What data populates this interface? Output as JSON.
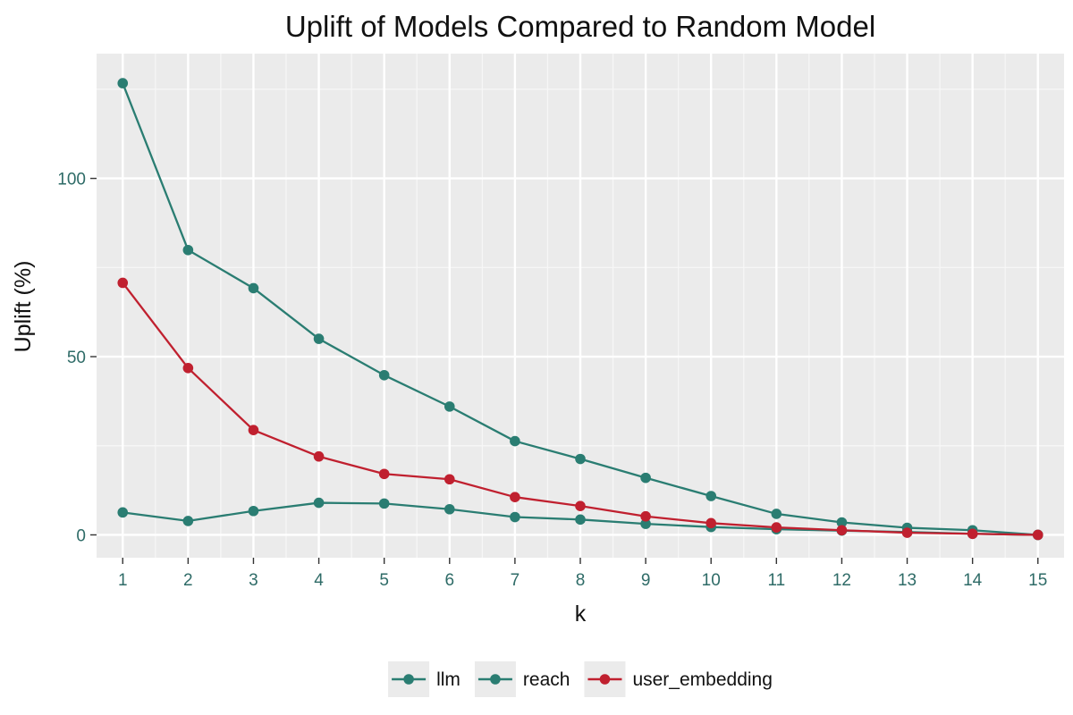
{
  "chart_data": {
    "type": "line",
    "title": "Uplift of Models Compared to Random Model",
    "xlabel": "k",
    "ylabel": "Uplift (%)",
    "x": [
      1,
      2,
      3,
      4,
      5,
      6,
      7,
      8,
      9,
      10,
      11,
      12,
      13,
      14,
      15
    ],
    "xlim": [
      0.6,
      15.4
    ],
    "ylim": [
      -6.4,
      135
    ],
    "y_ticks": [
      0,
      50,
      100
    ],
    "grid": true,
    "legend_position": "bottom",
    "series": [
      {
        "name": "llm",
        "color": "#2a7d72",
        "values": [
          126.7,
          79.9,
          69.2,
          55.0,
          44.8,
          36.0,
          26.3,
          21.3,
          16.0,
          10.9,
          5.9,
          3.5,
          2.0,
          1.3,
          0.0
        ]
      },
      {
        "name": "reach",
        "color": "#2a7d72",
        "values": [
          6.3,
          3.9,
          6.7,
          9.0,
          8.8,
          7.2,
          5.0,
          4.3,
          3.1,
          2.2,
          1.6,
          1.2,
          0.8,
          0.3,
          0.0
        ]
      },
      {
        "name": "user_embedding",
        "color": "#c0202f",
        "values": [
          70.7,
          46.8,
          29.4,
          22.0,
          17.1,
          15.6,
          10.6,
          8.1,
          5.2,
          3.3,
          2.1,
          1.3,
          0.6,
          0.3,
          0.0
        ]
      }
    ]
  }
}
